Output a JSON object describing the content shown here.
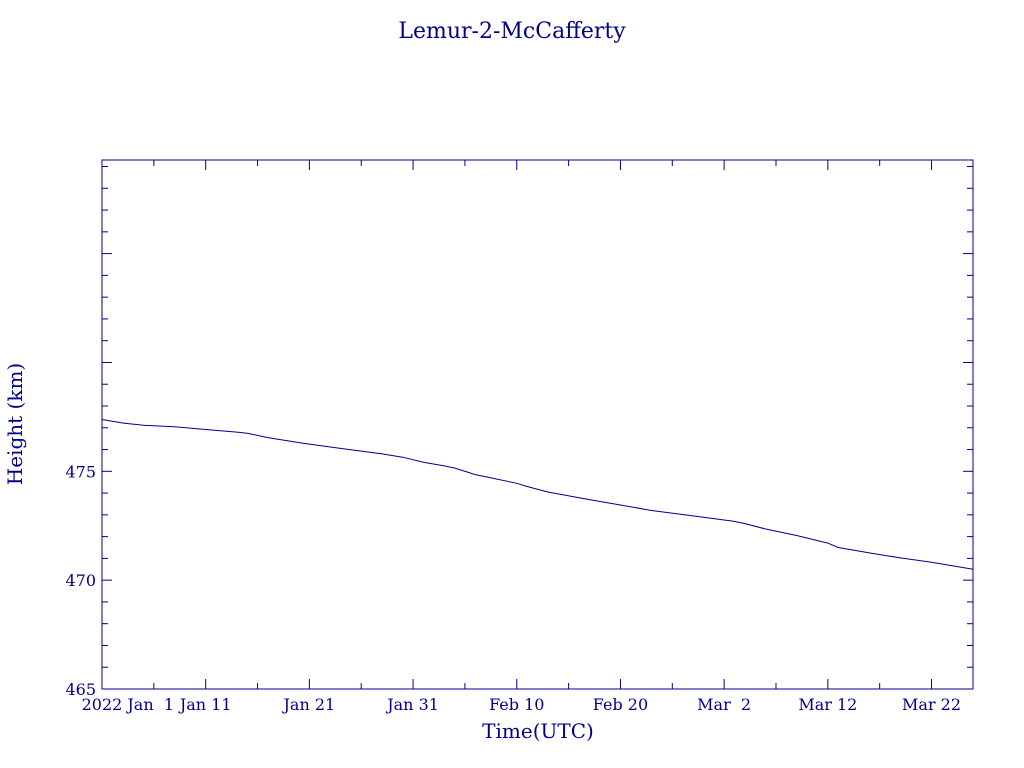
{
  "chart_data": {
    "type": "line",
    "title": "Lemur-2-McCafferty",
    "xlabel": "Time(UTC)",
    "ylabel": "Height (km)",
    "colors": {
      "line": "#00008b",
      "axis": "#00008b",
      "text": "#00008b"
    },
    "grid": false,
    "legend": "none",
    "xlim": [
      "2022-01-01",
      "2022-03-26"
    ],
    "ylim": [
      465,
      489.3
    ],
    "x_tick_labels": [
      {
        "date": "2022-01-01",
        "label": "2022 Jan  1"
      },
      {
        "date": "2022-01-11",
        "label": "Jan 11"
      },
      {
        "date": "2022-01-21",
        "label": "Jan 21"
      },
      {
        "date": "2022-01-31",
        "label": "Jan 31"
      },
      {
        "date": "2022-02-10",
        "label": "Feb 10"
      },
      {
        "date": "2022-02-20",
        "label": "Feb 20"
      },
      {
        "date": "2022-03-02",
        "label": "Mar  2"
      },
      {
        "date": "2022-03-12",
        "label": "Mar 12"
      },
      {
        "date": "2022-03-22",
        "label": "Mar 22"
      }
    ],
    "y_tick_labels": [
      {
        "value": 465,
        "label": "465"
      },
      {
        "value": 470,
        "label": "470"
      },
      {
        "value": 475,
        "label": "475"
      }
    ],
    "series": [
      {
        "x": [
          "2022-01-01",
          "2022-01-03",
          "2022-01-05",
          "2022-01-08",
          "2022-01-11",
          "2022-01-14",
          "2022-01-15",
          "2022-01-17",
          "2022-01-20",
          "2022-01-21",
          "2022-01-24",
          "2022-01-28",
          "2022-01-30",
          "2022-02-01",
          "2022-02-03",
          "2022-02-04",
          "2022-02-06",
          "2022-02-10",
          "2022-02-11",
          "2022-02-13",
          "2022-02-17",
          "2022-02-20",
          "2022-02-23",
          "2022-02-27",
          "2022-03-03",
          "2022-03-04",
          "2022-03-06",
          "2022-03-09",
          "2022-03-12",
          "2022-03-13",
          "2022-03-16",
          "2022-03-19",
          "2022-03-22",
          "2022-03-26"
        ],
        "y": [
          477.38,
          477.22,
          477.12,
          477.05,
          476.92,
          476.8,
          476.75,
          476.55,
          476.32,
          476.25,
          476.05,
          475.8,
          475.65,
          475.42,
          475.25,
          475.15,
          474.85,
          474.45,
          474.3,
          474.05,
          473.7,
          473.45,
          473.2,
          472.95,
          472.7,
          472.6,
          472.35,
          472.05,
          471.7,
          471.5,
          471.25,
          471.02,
          470.82,
          470.5
        ]
      }
    ]
  }
}
